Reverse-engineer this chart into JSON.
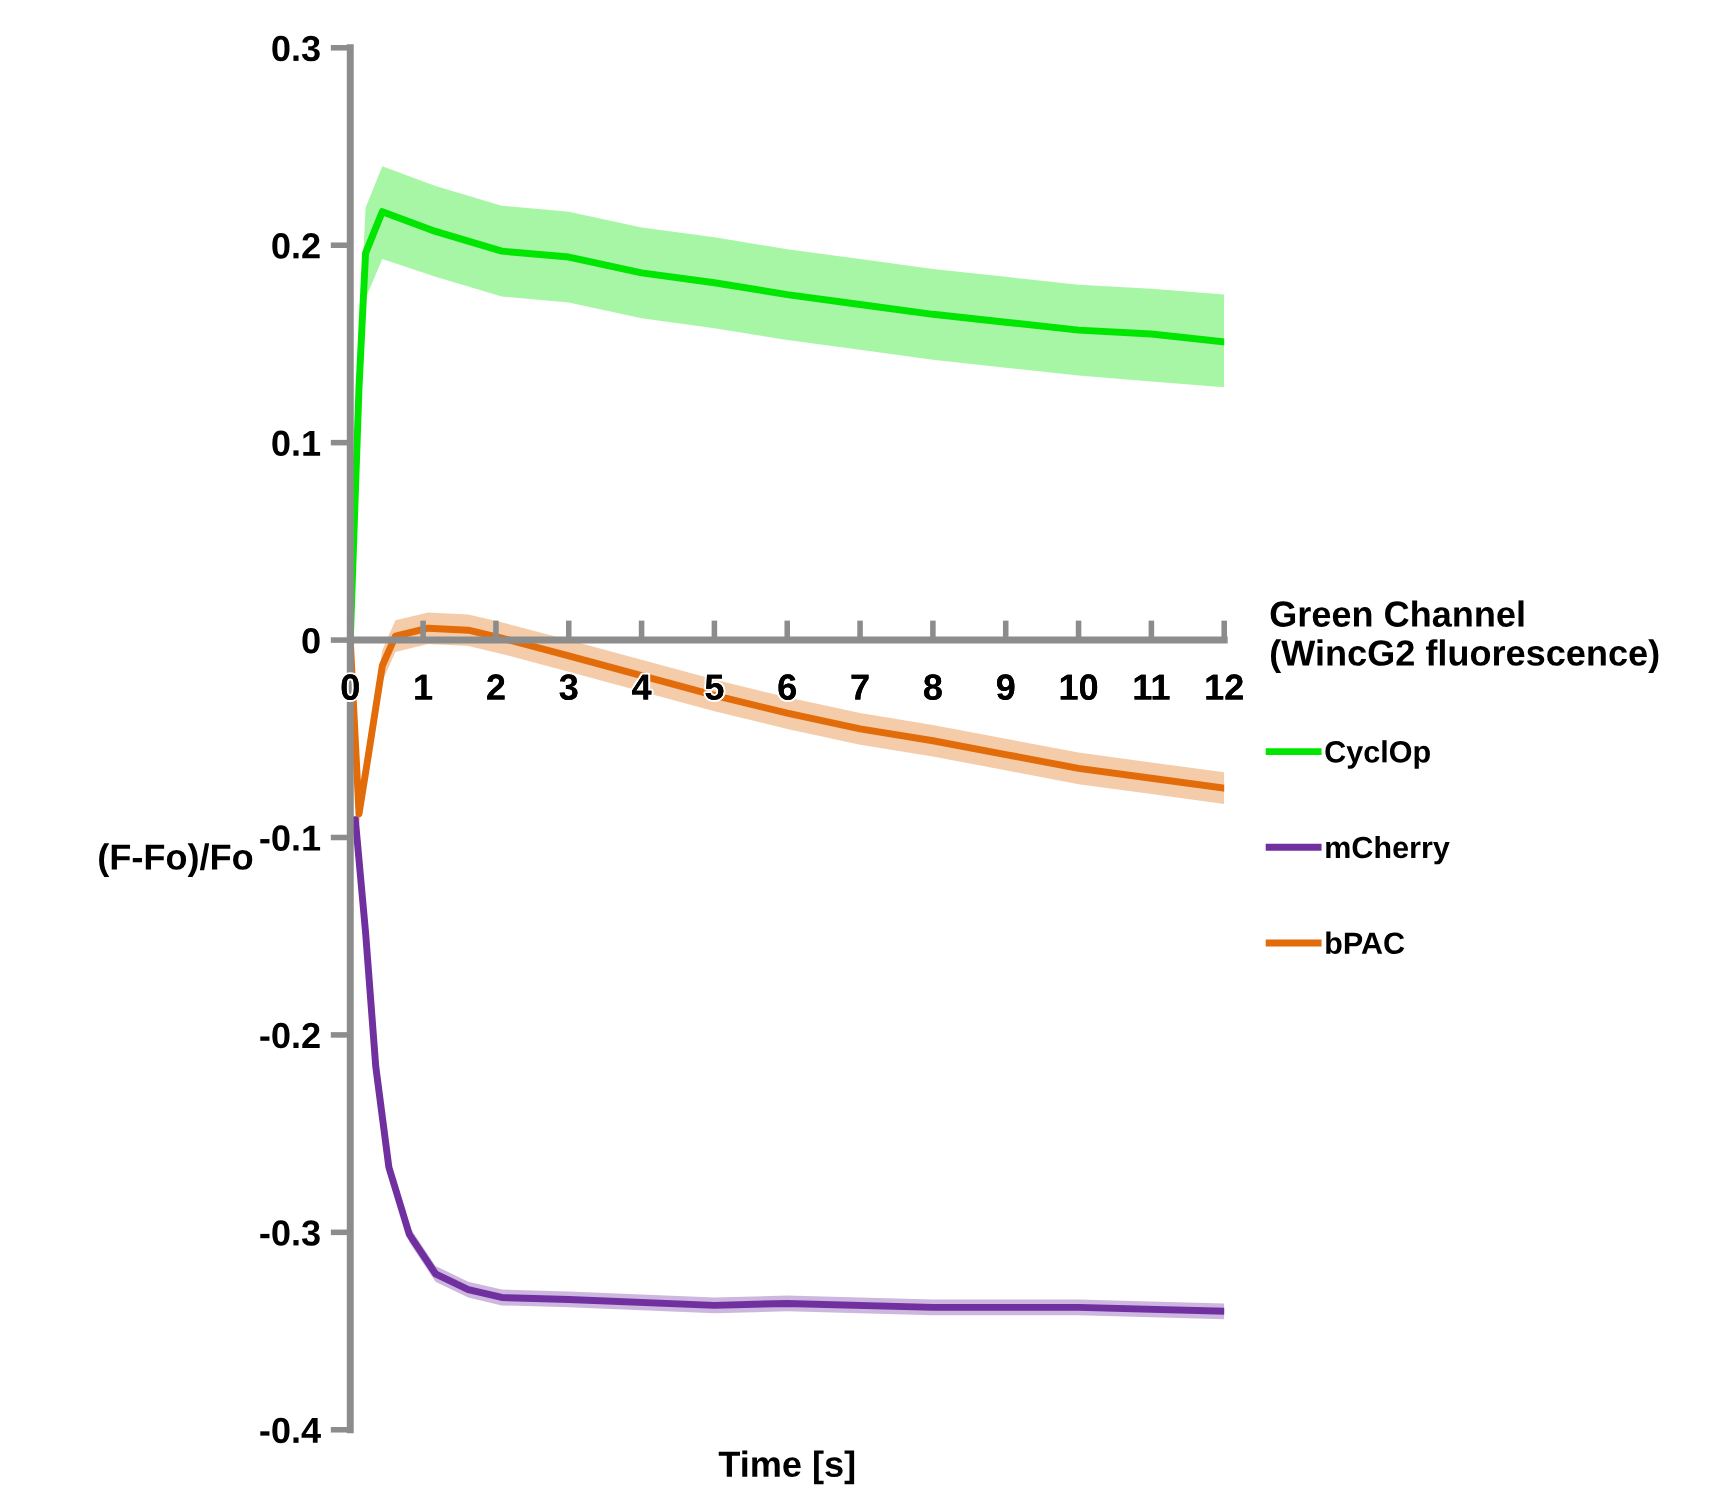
{
  "chart_data": {
    "type": "line",
    "xlabel": "Time [s]",
    "ylabel": "(F-Fo)/Fo",
    "legend_title": "Green Channel\n(WincG2 fluorescence)",
    "legend": "right",
    "xlim": [
      0,
      12
    ],
    "xticks": [
      0,
      1,
      2,
      3,
      4,
      5,
      6,
      7,
      8,
      9,
      10,
      11,
      12
    ],
    "ylim": [
      -0.4,
      0.3
    ],
    "yticks": [
      -0.4,
      -0.3,
      -0.2,
      -0.1,
      0,
      0.1,
      0.2,
      0.3
    ],
    "grid": false,
    "marker": "none",
    "line_style": "solid",
    "series": [
      {
        "name": "CyclOp",
        "color": "#00e600",
        "x": [
          0,
          0.12,
          0.21,
          0.44,
          1.17,
          2.08,
          3,
          4,
          5,
          6,
          7,
          8,
          9,
          10,
          11,
          12
        ],
        "values": [
          0,
          0.128,
          0.196,
          0.217,
          0.207,
          0.197,
          0.194,
          0.186,
          0.181,
          0.175,
          0.17,
          0.165,
          0.161,
          0.157,
          0.155,
          0.151
        ],
        "lower": [
          0,
          0.105,
          0.173,
          0.193,
          0.184,
          0.174,
          0.171,
          0.163,
          0.158,
          0.152,
          0.147,
          0.142,
          0.138,
          0.134,
          0.131,
          0.128
        ],
        "upper": [
          0,
          0.151,
          0.219,
          0.24,
          0.23,
          0.22,
          0.217,
          0.209,
          0.204,
          0.198,
          0.193,
          0.188,
          0.184,
          0.18,
          0.178,
          0.175
        ]
      },
      {
        "name": "mCherry",
        "color": "#7030a0",
        "x": [
          0.07,
          0.21,
          0.35,
          0.53,
          0.81,
          1.17,
          1.62,
          2.08,
          3,
          5,
          6,
          8,
          10,
          12
        ],
        "values": [
          -0.091,
          -0.148,
          -0.216,
          -0.267,
          -0.301,
          -0.321,
          -0.329,
          -0.333,
          -0.334,
          -0.337,
          -0.336,
          -0.338,
          -0.338,
          -0.34
        ],
        "lower": [
          -0.095,
          -0.152,
          -0.22,
          -0.271,
          -0.305,
          -0.325,
          -0.333,
          -0.337,
          -0.338,
          -0.341,
          -0.34,
          -0.342,
          -0.342,
          -0.344
        ],
        "upper": [
          -0.087,
          -0.144,
          -0.212,
          -0.263,
          -0.297,
          -0.317,
          -0.325,
          -0.329,
          -0.33,
          -0.333,
          -0.332,
          -0.334,
          -0.334,
          -0.336
        ]
      },
      {
        "name": "bPAC",
        "color": "#e36c0a",
        "x": [
          0,
          0.12,
          0.25,
          0.44,
          0.62,
          1.07,
          1.62,
          2.08,
          3,
          4,
          5,
          6,
          7,
          8,
          9,
          10,
          11,
          12
        ],
        "values": [
          0,
          -0.088,
          -0.058,
          -0.013,
          0.002,
          0.006,
          0.005,
          0.001,
          -0.008,
          -0.018,
          -0.028,
          -0.037,
          -0.045,
          -0.051,
          -0.058,
          -0.065,
          -0.07,
          -0.075
        ],
        "lower": [
          0,
          -0.094,
          -0.065,
          -0.021,
          -0.006,
          -0.002,
          -0.003,
          -0.007,
          -0.016,
          -0.026,
          -0.036,
          -0.045,
          -0.053,
          -0.059,
          -0.066,
          -0.073,
          -0.078,
          -0.083
        ],
        "upper": [
          0,
          -0.082,
          -0.051,
          -0.005,
          0.01,
          0.014,
          0.013,
          0.009,
          0.0,
          -0.01,
          -0.02,
          -0.029,
          -0.037,
          -0.043,
          -0.05,
          -0.057,
          -0.062,
          -0.067
        ]
      }
    ]
  }
}
